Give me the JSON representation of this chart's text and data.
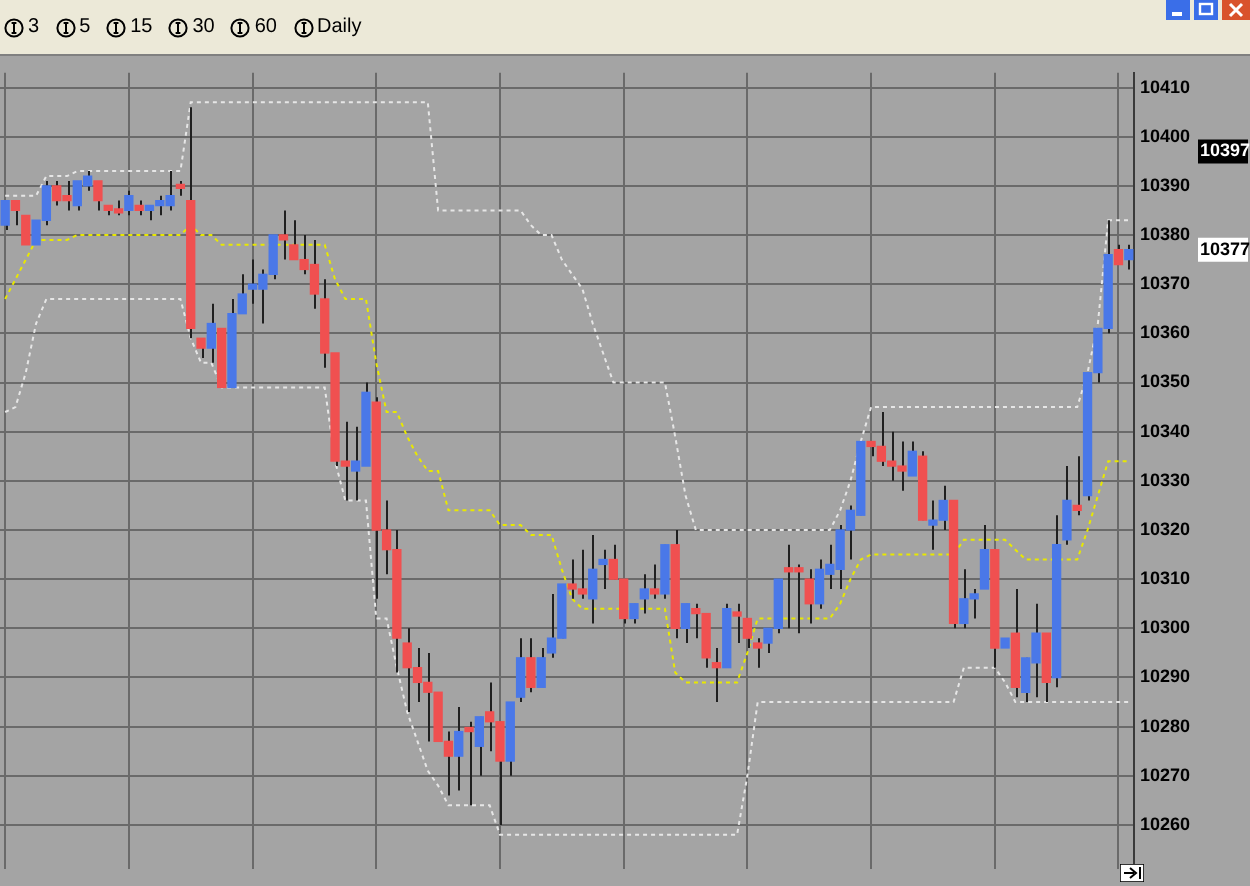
{
  "chart_data": {
    "type": "candlestick",
    "categories": [
      null,
      null,
      null,
      null,
      null,
      null,
      null,
      null,
      null,
      null,
      null,
      null,
      null,
      null,
      null,
      null,
      null,
      null,
      null,
      null,
      null,
      null,
      null,
      null,
      null,
      null,
      null,
      null,
      null,
      null,
      null,
      null,
      null,
      null,
      null,
      null,
      null,
      null,
      null,
      null,
      null,
      null,
      null,
      null,
      null,
      null,
      null,
      null,
      null,
      null,
      null,
      null,
      null,
      null,
      null,
      null,
      null,
      null,
      null,
      null,
      null,
      null,
      null,
      null,
      null,
      null,
      null,
      null,
      null,
      null,
      null,
      null,
      null,
      null,
      null,
      null,
      null,
      null,
      null,
      null,
      null,
      null,
      null,
      null,
      null,
      null,
      null,
      null,
      null,
      null,
      null,
      null,
      null,
      null,
      null,
      null,
      null,
      null,
      null,
      null,
      null,
      null,
      null,
      null,
      null,
      null,
      null,
      null,
      null,
      null
    ],
    "ohlc": [
      [
        10382,
        10387,
        10381,
        10387
      ],
      [
        10387,
        10387,
        10382,
        10385
      ],
      [
        10384,
        10384,
        10378,
        10378
      ],
      [
        10378,
        10383,
        10378,
        10383
      ],
      [
        10383,
        10391,
        10382,
        10390
      ],
      [
        10390,
        10391,
        10386,
        10387
      ],
      [
        10388,
        10391,
        10385,
        10387
      ],
      [
        10386,
        10391,
        10385,
        10391
      ],
      [
        10390,
        10393,
        10389,
        10392
      ],
      [
        10391,
        10391,
        10385,
        10387
      ],
      [
        10386,
        10386,
        10384,
        10385
      ],
      [
        10385,
        10387,
        10384,
        10384.5
      ],
      [
        10385,
        10389,
        10384,
        10388
      ],
      [
        10386,
        10387,
        10384,
        10385
      ],
      [
        10385,
        10386,
        10383,
        10386
      ],
      [
        10386,
        10388,
        10384,
        10387
      ],
      [
        10386,
        10393,
        10385,
        10388
      ],
      [
        10390,
        10391,
        10388,
        10389.5
      ],
      [
        10387,
        10406,
        10359,
        10361
      ],
      [
        10359,
        10359,
        10355,
        10357
      ],
      [
        10357,
        10366,
        10354,
        10362
      ],
      [
        10361,
        10361,
        10349,
        10349
      ],
      [
        10349,
        10367,
        10349,
        10364
      ],
      [
        10364,
        10372,
        10364,
        10368
      ],
      [
        10369,
        10375,
        10366,
        10370
      ],
      [
        10369,
        10373,
        10362,
        10372
      ],
      [
        10372,
        10380,
        10371,
        10380
      ],
      [
        10380,
        10385,
        10375,
        10379
      ],
      [
        10378,
        10383,
        10375,
        10375
      ],
      [
        10375,
        10380,
        10372,
        10373
      ],
      [
        10374,
        10379,
        10365,
        10368
      ],
      [
        10367,
        10371,
        10353,
        10356
      ],
      [
        10356,
        10356,
        10333,
        10334
      ],
      [
        10334,
        10342,
        10326,
        10333
      ],
      [
        10332,
        10341,
        10326,
        10334
      ],
      [
        10333,
        10350,
        10333,
        10348
      ],
      [
        10346,
        10347,
        10306,
        10320
      ],
      [
        10320,
        10326,
        10311,
        10316
      ],
      [
        10316,
        10320,
        10291,
        10298
      ],
      [
        10297,
        10300,
        10283,
        10292
      ],
      [
        10292,
        10296,
        10285,
        10289
      ],
      [
        10289,
        10295,
        10277,
        10287
      ],
      [
        10287,
        10287,
        10277,
        10277
      ],
      [
        10277,
        10279,
        10266,
        10274
      ],
      [
        10274,
        10284,
        10267,
        10279
      ],
      [
        10279.5,
        10281,
        10264,
        10279
      ],
      [
        10276,
        10282,
        10270,
        10282
      ],
      [
        10283,
        10289,
        10275,
        10281
      ],
      [
        10281,
        10281,
        10260,
        10273
      ],
      [
        10273,
        10285,
        10270,
        10285
      ],
      [
        10286,
        10298,
        10285,
        10294
      ],
      [
        10294,
        10298,
        10287,
        10288
      ],
      [
        10288,
        10296,
        10288,
        10294
      ],
      [
        10295,
        10307,
        10294,
        10298
      ],
      [
        10298,
        10309,
        10298,
        10309
      ],
      [
        10309,
        10314,
        10306,
        10308
      ],
      [
        10308,
        10316,
        10306,
        10307
      ],
      [
        10306,
        10319,
        10301,
        10312
      ],
      [
        10313,
        10316,
        10308,
        10314
      ],
      [
        10314,
        10317,
        10310,
        10310
      ],
      [
        10310,
        10310,
        10301,
        10302
      ],
      [
        10302,
        10305,
        10301,
        10305
      ],
      [
        10306,
        10311,
        10303,
        10308
      ],
      [
        10308,
        10313,
        10306,
        10307
      ],
      [
        10307,
        10317,
        10306,
        10317
      ],
      [
        10317,
        10320,
        10298,
        10300
      ],
      [
        10300,
        10305,
        10297,
        10305
      ],
      [
        10304,
        10305,
        10298,
        10303
      ],
      [
        10303,
        10303,
        10292,
        10294
      ],
      [
        10293,
        10296,
        10285,
        10292
      ],
      [
        10292,
        10305,
        10292,
        10304
      ],
      [
        10303,
        10305,
        10297,
        10302.5
      ],
      [
        10302,
        10302,
        10296,
        10298
      ],
      [
        10297,
        10298,
        10292,
        10296
      ],
      [
        10297,
        10300,
        10295,
        10300
      ],
      [
        10300,
        10310,
        10299,
        10310
      ],
      [
        10312,
        10317,
        10300,
        10311.5
      ],
      [
        10312,
        10313,
        10299,
        10311.5
      ],
      [
        10310,
        10312,
        10301,
        10305
      ],
      [
        10305,
        10314,
        10304,
        10312
      ],
      [
        10311,
        10317,
        10308,
        10313
      ],
      [
        10312,
        10321,
        10308,
        10320
      ],
      [
        10320,
        10325,
        10314,
        10324
      ],
      [
        10323,
        10338,
        10323,
        10338
      ],
      [
        10338,
        10338,
        10335,
        10337
      ],
      [
        10337,
        10344,
        10333,
        10334
      ],
      [
        10334,
        10340,
        10330,
        10333
      ],
      [
        10333,
        10338,
        10328,
        10332
      ],
      [
        10331,
        10338,
        10331,
        10336
      ],
      [
        10335,
        10336,
        10322,
        10322
      ],
      [
        10321,
        10326,
        10316,
        10322
      ],
      [
        10322,
        10329,
        10320,
        10326
      ],
      [
        10326,
        10326,
        10300,
        10301
      ],
      [
        10301,
        10312,
        10300,
        10306
      ],
      [
        10306,
        10308,
        10302,
        10307
      ],
      [
        10308,
        10321,
        10308,
        10316
      ],
      [
        10316,
        10316,
        10292,
        10296
      ],
      [
        10296,
        10298,
        10296,
        10298
      ],
      [
        10299,
        10308,
        10286,
        10288
      ],
      [
        10287,
        10294,
        10285,
        10294
      ],
      [
        10293,
        10305,
        10286,
        10299
      ],
      [
        10299,
        10299,
        10285,
        10289
      ],
      [
        10290,
        10323,
        10288,
        10317
      ],
      [
        10318,
        10333,
        10317,
        10326
      ],
      [
        10325,
        10335,
        10323,
        10324
      ],
      [
        10327,
        10352,
        10326,
        10352
      ],
      [
        10352,
        10361,
        10350,
        10361
      ],
      [
        10361,
        10383,
        10360,
        10376
      ],
      [
        10377,
        10378,
        10374,
        10374
      ],
      [
        10375,
        10378,
        10373,
        10377
      ]
    ],
    "colors": [
      "#4a78e8",
      "#f05050",
      "#f05050",
      "#4a78e8",
      "#4a78e8",
      "#f05050",
      "#f05050",
      "#4a78e8",
      "#4a78e8",
      "#f05050",
      "#f05050",
      "#f05050",
      "#4a78e8",
      "#f05050",
      "#4a78e8",
      "#4a78e8",
      "#4a78e8",
      "#f05050",
      "#f05050",
      "#f05050",
      "#4a78e8",
      "#f05050",
      "#4a78e8",
      "#4a78e8",
      "#4a78e8",
      "#4a78e8",
      "#4a78e8",
      "#f05050",
      "#f05050",
      "#f05050",
      "#f05050",
      "#f05050",
      "#f05050",
      "#f05050",
      "#4a78e8",
      "#4a78e8",
      "#f05050",
      "#f05050",
      "#f05050",
      "#f05050",
      "#f05050",
      "#f05050",
      "#f05050",
      "#f05050",
      "#4a78e8",
      "#f05050",
      "#4a78e8",
      "#f05050",
      "#f05050",
      "#4a78e8",
      "#4a78e8",
      "#f05050",
      "#4a78e8",
      "#4a78e8",
      "#4a78e8",
      "#f05050",
      "#f05050",
      "#4a78e8",
      "#4a78e8",
      "#f05050",
      "#f05050",
      "#4a78e8",
      "#4a78e8",
      "#f05050",
      "#4a78e8",
      "#f05050",
      "#4a78e8",
      "#f05050",
      "#f05050",
      "#f05050",
      "#4a78e8",
      "#f05050",
      "#f05050",
      "#f05050",
      "#4a78e8",
      "#4a78e8",
      "#f05050",
      "#f05050",
      "#f05050",
      "#4a78e8",
      "#4a78e8",
      "#4a78e8",
      "#4a78e8",
      "#4a78e8",
      "#f05050",
      "#f05050",
      "#f05050",
      "#f05050",
      "#4a78e8",
      "#f05050",
      "#4a78e8",
      "#4a78e8",
      "#f05050",
      "#4a78e8",
      "#4a78e8",
      "#4a78e8",
      "#f05050",
      "#4a78e8",
      "#f05050",
      "#4a78e8",
      "#4a78e8",
      "#f05050",
      "#4a78e8",
      "#4a78e8",
      "#f05050",
      "#4a78e8",
      "#4a78e8",
      "#4a78e8",
      "#f05050",
      "#4a78e8"
    ],
    "series": [
      {
        "type": "line",
        "color": "#e6e6e6",
        "line_style": "dotted",
        "values": [
          10388,
          10388,
          10388,
          10388,
          10392,
          10392,
          10392,
          10393,
          10393,
          10393,
          10393,
          10393,
          10393,
          10393,
          10393,
          10393,
          10393,
          10393,
          10407,
          10407,
          10407,
          10407,
          10407,
          10407,
          10407,
          10407,
          10407,
          10407,
          10407,
          10407,
          10407,
          10407,
          10407,
          10407,
          10407,
          10407,
          10407,
          10407,
          10407,
          10407,
          10407,
          10407,
          10385,
          10385,
          10385,
          10385,
          10385,
          10385,
          10385,
          10385,
          10385,
          10382,
          10380,
          10380,
          10375,
          10372,
          10369,
          10362,
          10356,
          10350,
          10350,
          10350,
          10350,
          10350,
          10350,
          10339,
          10327,
          10320,
          10320,
          10320,
          10320,
          10320,
          10320,
          10320,
          10320,
          10320,
          10320,
          10320,
          10320,
          10320,
          10320,
          10324,
          10330,
          10338,
          10345,
          10345,
          10345,
          10345,
          10345,
          10345,
          10345,
          10345,
          10345,
          10345,
          10345,
          10345,
          10345,
          10345,
          10345,
          10345,
          10345,
          10345,
          10345,
          10345,
          10345,
          10352,
          10362,
          10383,
          10383,
          10383
        ]
      },
      {
        "type": "line",
        "color": "#e6e6e6",
        "line_style": "dotted",
        "values": [
          10344,
          10345,
          10352,
          10362,
          10367,
          10367,
          10367,
          10367,
          10367,
          10367,
          10367,
          10367,
          10367,
          10367,
          10367,
          10367,
          10367,
          10367,
          10359,
          10354,
          10354,
          10349,
          10349,
          10349,
          10349,
          10349,
          10349,
          10349,
          10349,
          10349,
          10349,
          10349,
          10334,
          10326,
          10326,
          10326,
          10302,
          10302,
          10292,
          10283,
          10277,
          10271,
          10268,
          10264,
          10264,
          10264,
          10264,
          10264,
          10258,
          10258,
          10258,
          10258,
          10258,
          10258,
          10258,
          10258,
          10258,
          10258,
          10258,
          10258,
          10258,
          10258,
          10258,
          10258,
          10258,
          10258,
          10258,
          10258,
          10258,
          10258,
          10258,
          10258,
          10270,
          10285,
          10285,
          10285,
          10285,
          10285,
          10285,
          10285,
          10285,
          10285,
          10285,
          10285,
          10285,
          10285,
          10285,
          10285,
          10285,
          10285,
          10285,
          10285,
          10285,
          10292,
          10292,
          10292,
          10292,
          10289,
          10285,
          10285,
          10285,
          10285,
          10285,
          10285,
          10285,
          10285,
          10285,
          10285,
          10285,
          10285
        ]
      },
      {
        "type": "line",
        "color": "#e8e800",
        "line_style": "dotted",
        "values": [
          10367,
          10371,
          10375,
          10379,
          10379,
          10379,
          10379,
          10380,
          10380,
          10380,
          10380,
          10380,
          10380,
          10380,
          10380,
          10380,
          10380,
          10380,
          10382,
          10380,
          10380,
          10378,
          10378,
          10378,
          10378,
          10378,
          10378,
          10378,
          10378,
          10378,
          10378,
          10378,
          10371,
          10367,
          10367,
          10367,
          10354,
          10344,
          10344,
          10339,
          10335,
          10332,
          10332,
          10324,
          10324,
          10324,
          10324,
          10324,
          10321,
          10321,
          10321,
          10319,
          10319,
          10319,
          10312,
          10306,
          10304,
          10304,
          10304,
          10304,
          10304,
          10304,
          10304,
          10304,
          10304,
          10291,
          10289,
          10289,
          10289,
          10289,
          10289,
          10289,
          10295,
          10302,
          10302,
          10302,
          10302,
          10302,
          10302,
          10302,
          10302,
          10305,
          10310,
          10314,
          10315,
          10315,
          10315,
          10315,
          10315,
          10315,
          10315,
          10315,
          10315,
          10318,
          10318,
          10318,
          10318,
          10318,
          10316,
          10314,
          10314,
          10314,
          10314,
          10314,
          10314,
          10320,
          10327,
          10334,
          10334,
          10334
        ]
      }
    ],
    "ylim": [
      10251,
      10413
    ],
    "yticks": [
      10260,
      10270,
      10280,
      10290,
      10300,
      10310,
      10320,
      10330,
      10340,
      10350,
      10360,
      10370,
      10380,
      10390,
      10400,
      10410
    ],
    "grid": true,
    "annotations": [
      "3",
      "5",
      "15",
      "30",
      "60",
      "Daily",
      "10397",
      "10377"
    ]
  }
}
